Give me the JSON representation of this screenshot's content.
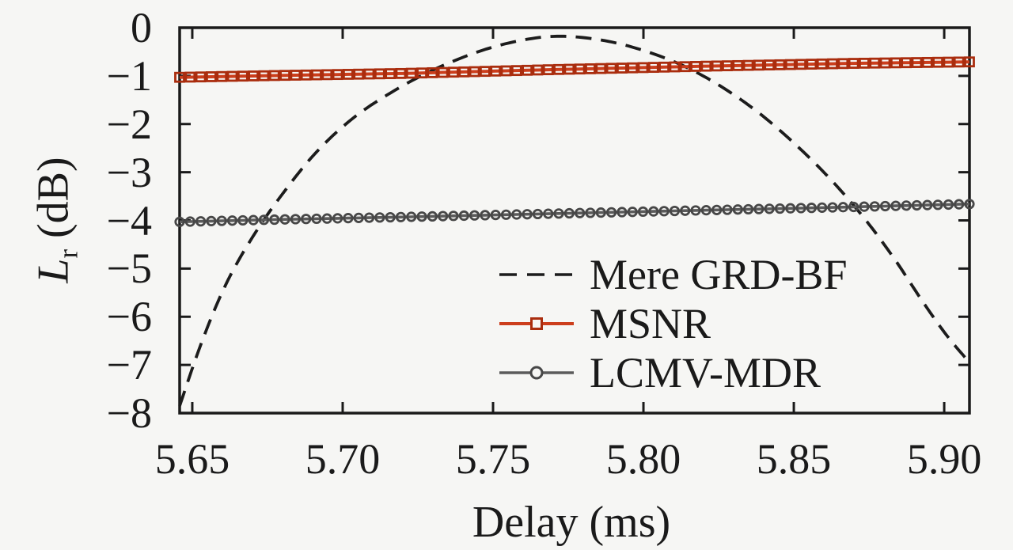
{
  "colors": {
    "background": "#f6f6f4",
    "axis": "#1a1a1a",
    "text": "#1a1a1a"
  },
  "chart_data": {
    "type": "line",
    "title": "",
    "xlabel": "Delay (ms)",
    "ylabel": "L_r (dB)",
    "ylabel_parts": {
      "variable": "L",
      "subscript": "r",
      "unit": "(dB)"
    },
    "xlim": [
      5.6458,
      5.9084
    ],
    "ylim": [
      -8,
      0
    ],
    "xticks": [
      5.65,
      5.7,
      5.75,
      5.8,
      5.85,
      5.9
    ],
    "xtick_labels": [
      "5.65",
      "5.70",
      "5.75",
      "5.80",
      "5.85",
      "5.90"
    ],
    "yticks": [
      0,
      -1,
      -2,
      -3,
      -4,
      -5,
      -6,
      -7,
      -8
    ],
    "ytick_labels": [
      "0",
      "−1",
      "−2",
      "−3",
      "−4",
      "−5",
      "−6",
      "−7",
      "−8"
    ],
    "grid": false,
    "box": true,
    "legend_position": "inside lower right",
    "series": [
      {
        "name": "Mere GRD-BF",
        "line_style": "dashed",
        "color": "#1c1c1c",
        "marker": "none",
        "x": [
          5.6458,
          5.653,
          5.661,
          5.67,
          5.68,
          5.691,
          5.703,
          5.716,
          5.73,
          5.745,
          5.758,
          5.77,
          5.782,
          5.795,
          5.81,
          5.824,
          5.838,
          5.851,
          5.863,
          5.874,
          5.884,
          5.893,
          5.901,
          5.9084
        ],
        "y": [
          -7.85,
          -6.55,
          -5.35,
          -4.35,
          -3.45,
          -2.6,
          -1.9,
          -1.35,
          -0.88,
          -0.5,
          -0.28,
          -0.18,
          -0.22,
          -0.38,
          -0.7,
          -1.15,
          -1.75,
          -2.45,
          -3.2,
          -4.0,
          -4.85,
          -5.7,
          -6.4,
          -6.95
        ]
      },
      {
        "name": "MSNR",
        "line_style": "solid",
        "color": "#cc3e1c",
        "marker": "square",
        "marker_color": "#aa2d0e",
        "n_markers": 76,
        "x": [
          5.6458,
          5.68,
          5.72,
          5.77,
          5.82,
          5.87,
          5.9084
        ],
        "y": [
          -1.03,
          -0.99,
          -0.95,
          -0.87,
          -0.8,
          -0.74,
          -0.71
        ]
      },
      {
        "name": "LCMV-MDR",
        "line_style": "solid",
        "color": "#5b5b5b",
        "marker": "circle",
        "marker_color": "#474747",
        "n_markers": 76,
        "x": [
          5.6458,
          5.68,
          5.72,
          5.77,
          5.82,
          5.87,
          5.9084
        ],
        "y": [
          -4.03,
          -3.98,
          -3.93,
          -3.86,
          -3.79,
          -3.72,
          -3.66
        ]
      }
    ]
  }
}
